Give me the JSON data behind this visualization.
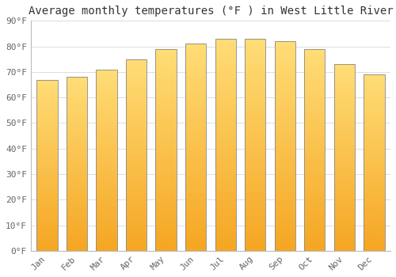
{
  "title": "Average monthly temperatures (°F ) in West Little River",
  "months": [
    "Jan",
    "Feb",
    "Mar",
    "Apr",
    "May",
    "Jun",
    "Jul",
    "Aug",
    "Sep",
    "Oct",
    "Nov",
    "Dec"
  ],
  "values": [
    67,
    68,
    71,
    75,
    79,
    81,
    83,
    83,
    82,
    79,
    73,
    69
  ],
  "bar_color_bottom": "#F5A623",
  "bar_color_top": "#FFD966",
  "bar_edge_color": "#888888",
  "background_color": "#FFFFFF",
  "grid_color": "#DDDDDD",
  "ylim": [
    0,
    90
  ],
  "yticks": [
    0,
    10,
    20,
    30,
    40,
    50,
    60,
    70,
    80,
    90
  ],
  "ytick_labels": [
    "0°F",
    "10°F",
    "20°F",
    "30°F",
    "40°F",
    "50°F",
    "60°F",
    "70°F",
    "80°F",
    "90°F"
  ],
  "title_fontsize": 10,
  "tick_fontsize": 8,
  "font_family": "monospace",
  "bar_width": 0.7
}
